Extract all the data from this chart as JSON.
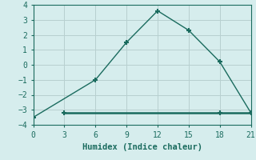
{
  "line1_x": [
    0,
    6,
    9,
    12,
    15,
    18,
    21
  ],
  "line1_y": [
    -3.5,
    -1.0,
    1.5,
    3.6,
    2.3,
    0.2,
    -3.2
  ],
  "line2_x": [
    3,
    18,
    21
  ],
  "line2_y": [
    -3.2,
    -3.2,
    -3.2
  ],
  "line_color": "#1a6b5e",
  "marker": "+",
  "marker_size": 5,
  "marker_edge_width": 1.5,
  "line_width": 1.0,
  "xlabel": "Humidex (Indice chaleur)",
  "xlim": [
    0,
    21
  ],
  "ylim": [
    -4,
    4
  ],
  "xticks": [
    0,
    3,
    6,
    9,
    12,
    15,
    18,
    21
  ],
  "yticks": [
    -4,
    -3,
    -2,
    -1,
    0,
    1,
    2,
    3,
    4
  ],
  "bg_color": "#d6eded",
  "grid_color": "#b8d0d0",
  "tick_labelsize": 7,
  "xlabel_fontsize": 7.5
}
